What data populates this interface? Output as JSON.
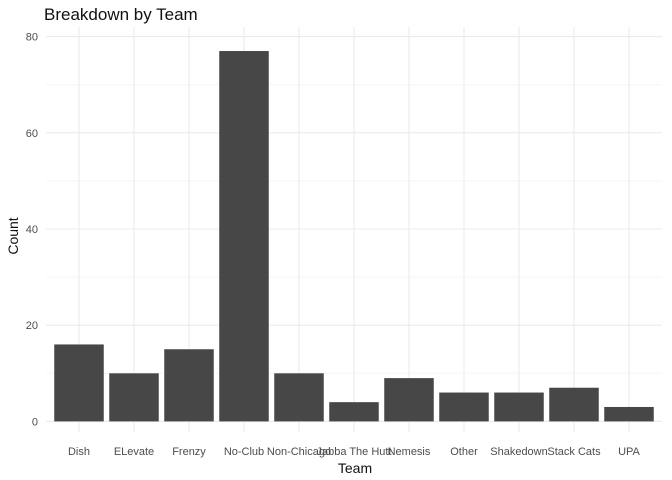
{
  "chart_data": {
    "type": "bar",
    "title": "Breakdown by Team",
    "xlabel": "Team",
    "ylabel": "Count",
    "categories": [
      "Dish",
      "ELevate",
      "Frenzy",
      "No-Club",
      "Non-Chicago",
      "Jabba The Hutt",
      "Nemesis",
      "Other",
      "Shakedown",
      "Stack Cats",
      "UPA"
    ],
    "values": [
      16,
      10,
      15,
      77,
      10,
      4,
      9,
      6,
      6,
      7,
      3
    ],
    "ylim": [
      0,
      80
    ],
    "yticks": [
      0,
      20,
      40,
      60,
      80
    ],
    "grid": true,
    "legend": "none",
    "colors": {
      "bar": "#474747",
      "grid_major": "#ebebeb",
      "grid_minor": "#f5f5f5"
    }
  }
}
